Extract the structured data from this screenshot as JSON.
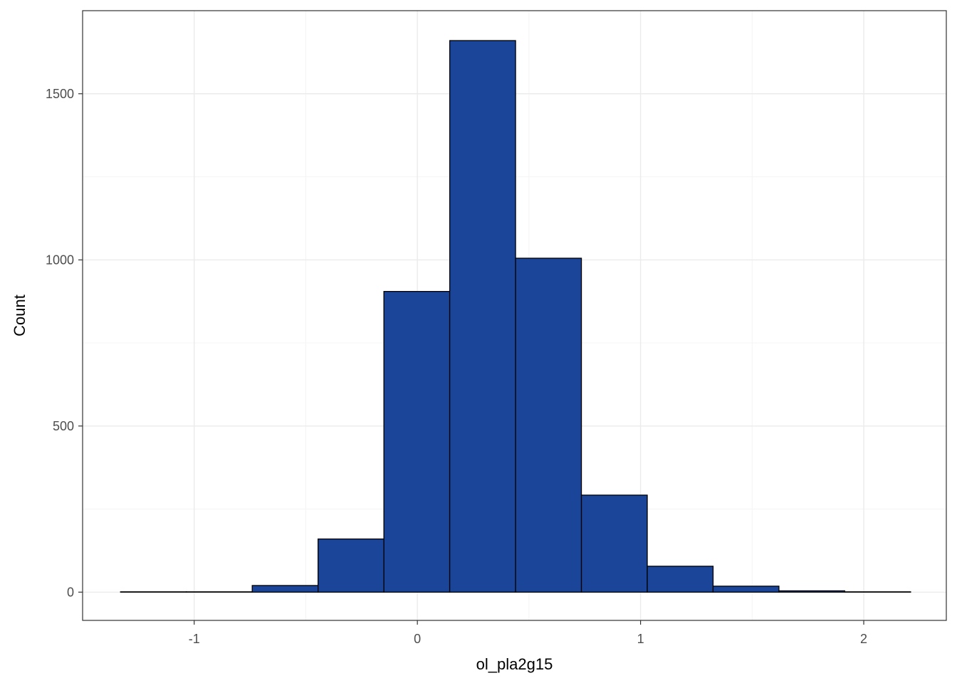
{
  "chart_data": {
    "type": "bar",
    "subtype": "histogram",
    "xlabel": "ol_pla2g15",
    "ylabel": "Count",
    "xlim": [
      -1.5,
      2.37
    ],
    "ylim": [
      -85,
      1750
    ],
    "x_ticks": [
      -1,
      0,
      1,
      2
    ],
    "x_tick_labels": [
      "-1",
      "0",
      "1",
      "2"
    ],
    "y_ticks": [
      0,
      500,
      1000,
      1500
    ],
    "y_tick_labels": [
      "0",
      "500",
      "1000",
      "1500"
    ],
    "y_minor_ticks": [
      250,
      750,
      1250
    ],
    "x_minor_ticks": [
      -1.5,
      -0.5,
      0.5,
      1.5
    ],
    "grid": true,
    "bins": [
      {
        "x0": -1.33,
        "x1": -1.035,
        "count": 1
      },
      {
        "x0": -1.035,
        "x1": -0.74,
        "count": 1
      },
      {
        "x0": -0.74,
        "x1": -0.445,
        "count": 20
      },
      {
        "x0": -0.445,
        "x1": -0.15,
        "count": 160
      },
      {
        "x0": -0.15,
        "x1": 0.145,
        "count": 905
      },
      {
        "x0": 0.145,
        "x1": 0.44,
        "count": 1660
      },
      {
        "x0": 0.44,
        "x1": 0.735,
        "count": 1005
      },
      {
        "x0": 0.735,
        "x1": 1.03,
        "count": 292
      },
      {
        "x0": 1.03,
        "x1": 1.325,
        "count": 78
      },
      {
        "x0": 1.325,
        "x1": 1.62,
        "count": 18
      },
      {
        "x0": 1.62,
        "x1": 1.915,
        "count": 4
      },
      {
        "x0": 1.915,
        "x1": 2.21,
        "count": 1
      }
    ],
    "colors": {
      "fill": "#1a4599",
      "stroke": "#000000",
      "panel_border": "#333333",
      "grid_major": "#ebebeb",
      "grid_minor": "#f4f4f4",
      "tick_text": "#4d4d4d"
    }
  }
}
